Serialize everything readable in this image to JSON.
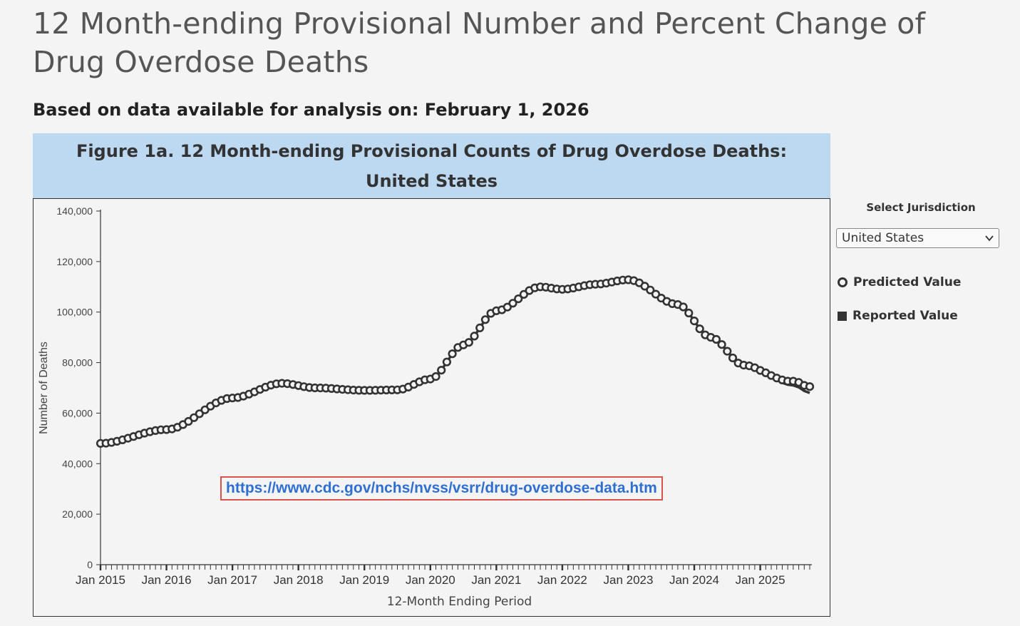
{
  "page": {
    "title": "12 Month-ending Provisional Number and Percent Change of Drug Overdose Deaths",
    "subtitle": "Based on data available for analysis on: February 1, 2026"
  },
  "figure": {
    "title": "Figure 1a. 12 Month-ending Provisional Counts of Drug Overdose Deaths: United States",
    "url_annotation": "https://www.cdc.gov/nchs/nvss/vsrr/drug-overdose-data.htm"
  },
  "side_panel": {
    "select_label": "Select Jurisdiction",
    "select_value": "United States",
    "legend": {
      "predicted": "Predicted Value",
      "reported": "Reported Value"
    }
  },
  "colors": {
    "header_bg": "#bdd9f2",
    "line": "#333333",
    "url_border": "#d9534f",
    "url_text": "#2f6fd1"
  },
  "chart_data": {
    "type": "line",
    "title": "Figure 1a. 12 Month-ending Provisional Counts of Drug Overdose Deaths: United States",
    "xlabel": "12-Month Ending Period",
    "ylabel": "Number of Deaths",
    "ylim": [
      0,
      140000
    ],
    "yticks": [
      0,
      20000,
      40000,
      60000,
      80000,
      100000,
      120000,
      140000
    ],
    "ytick_labels": [
      "0",
      "20,000",
      "40,000",
      "60,000",
      "80,000",
      "100,000",
      "120,000",
      "140,000"
    ],
    "x_start": "Jan 2015",
    "x_end": "Oct 2025",
    "xtick_labels": [
      "Jan 2015",
      "Jan 2016",
      "Jan 2017",
      "Jan 2018",
      "Jan 2019",
      "Jan 2020",
      "Jan 2021",
      "Jan 2022",
      "Jan 2023",
      "Jan 2024",
      "Jan 2025"
    ],
    "anchors": [
      {
        "month": 0,
        "value": 48000
      },
      {
        "month": 12,
        "value": 53500
      },
      {
        "month": 24,
        "value": 66000
      },
      {
        "month": 33,
        "value": 71800
      },
      {
        "month": 39,
        "value": 70000
      },
      {
        "month": 48,
        "value": 69000
      },
      {
        "month": 54,
        "value": 69200
      },
      {
        "month": 60,
        "value": 73500
      },
      {
        "month": 66,
        "value": 87000
      },
      {
        "month": 72,
        "value": 100500
      },
      {
        "month": 80,
        "value": 110000
      },
      {
        "month": 84,
        "value": 109000
      },
      {
        "month": 90,
        "value": 111000
      },
      {
        "month": 96,
        "value": 112800
      },
      {
        "month": 105,
        "value": 103000
      },
      {
        "month": 111,
        "value": 90000
      },
      {
        "month": 117,
        "value": 79000
      },
      {
        "month": 126,
        "value": 71000
      },
      {
        "month": 129,
        "value": 68000
      }
    ],
    "series": [
      {
        "name": "Predicted Value",
        "marker": "open-circle",
        "last_month": 129,
        "last_value": 72000
      },
      {
        "name": "Reported Value",
        "marker": "line",
        "last_month": 129,
        "last_value": 69500
      }
    ]
  }
}
